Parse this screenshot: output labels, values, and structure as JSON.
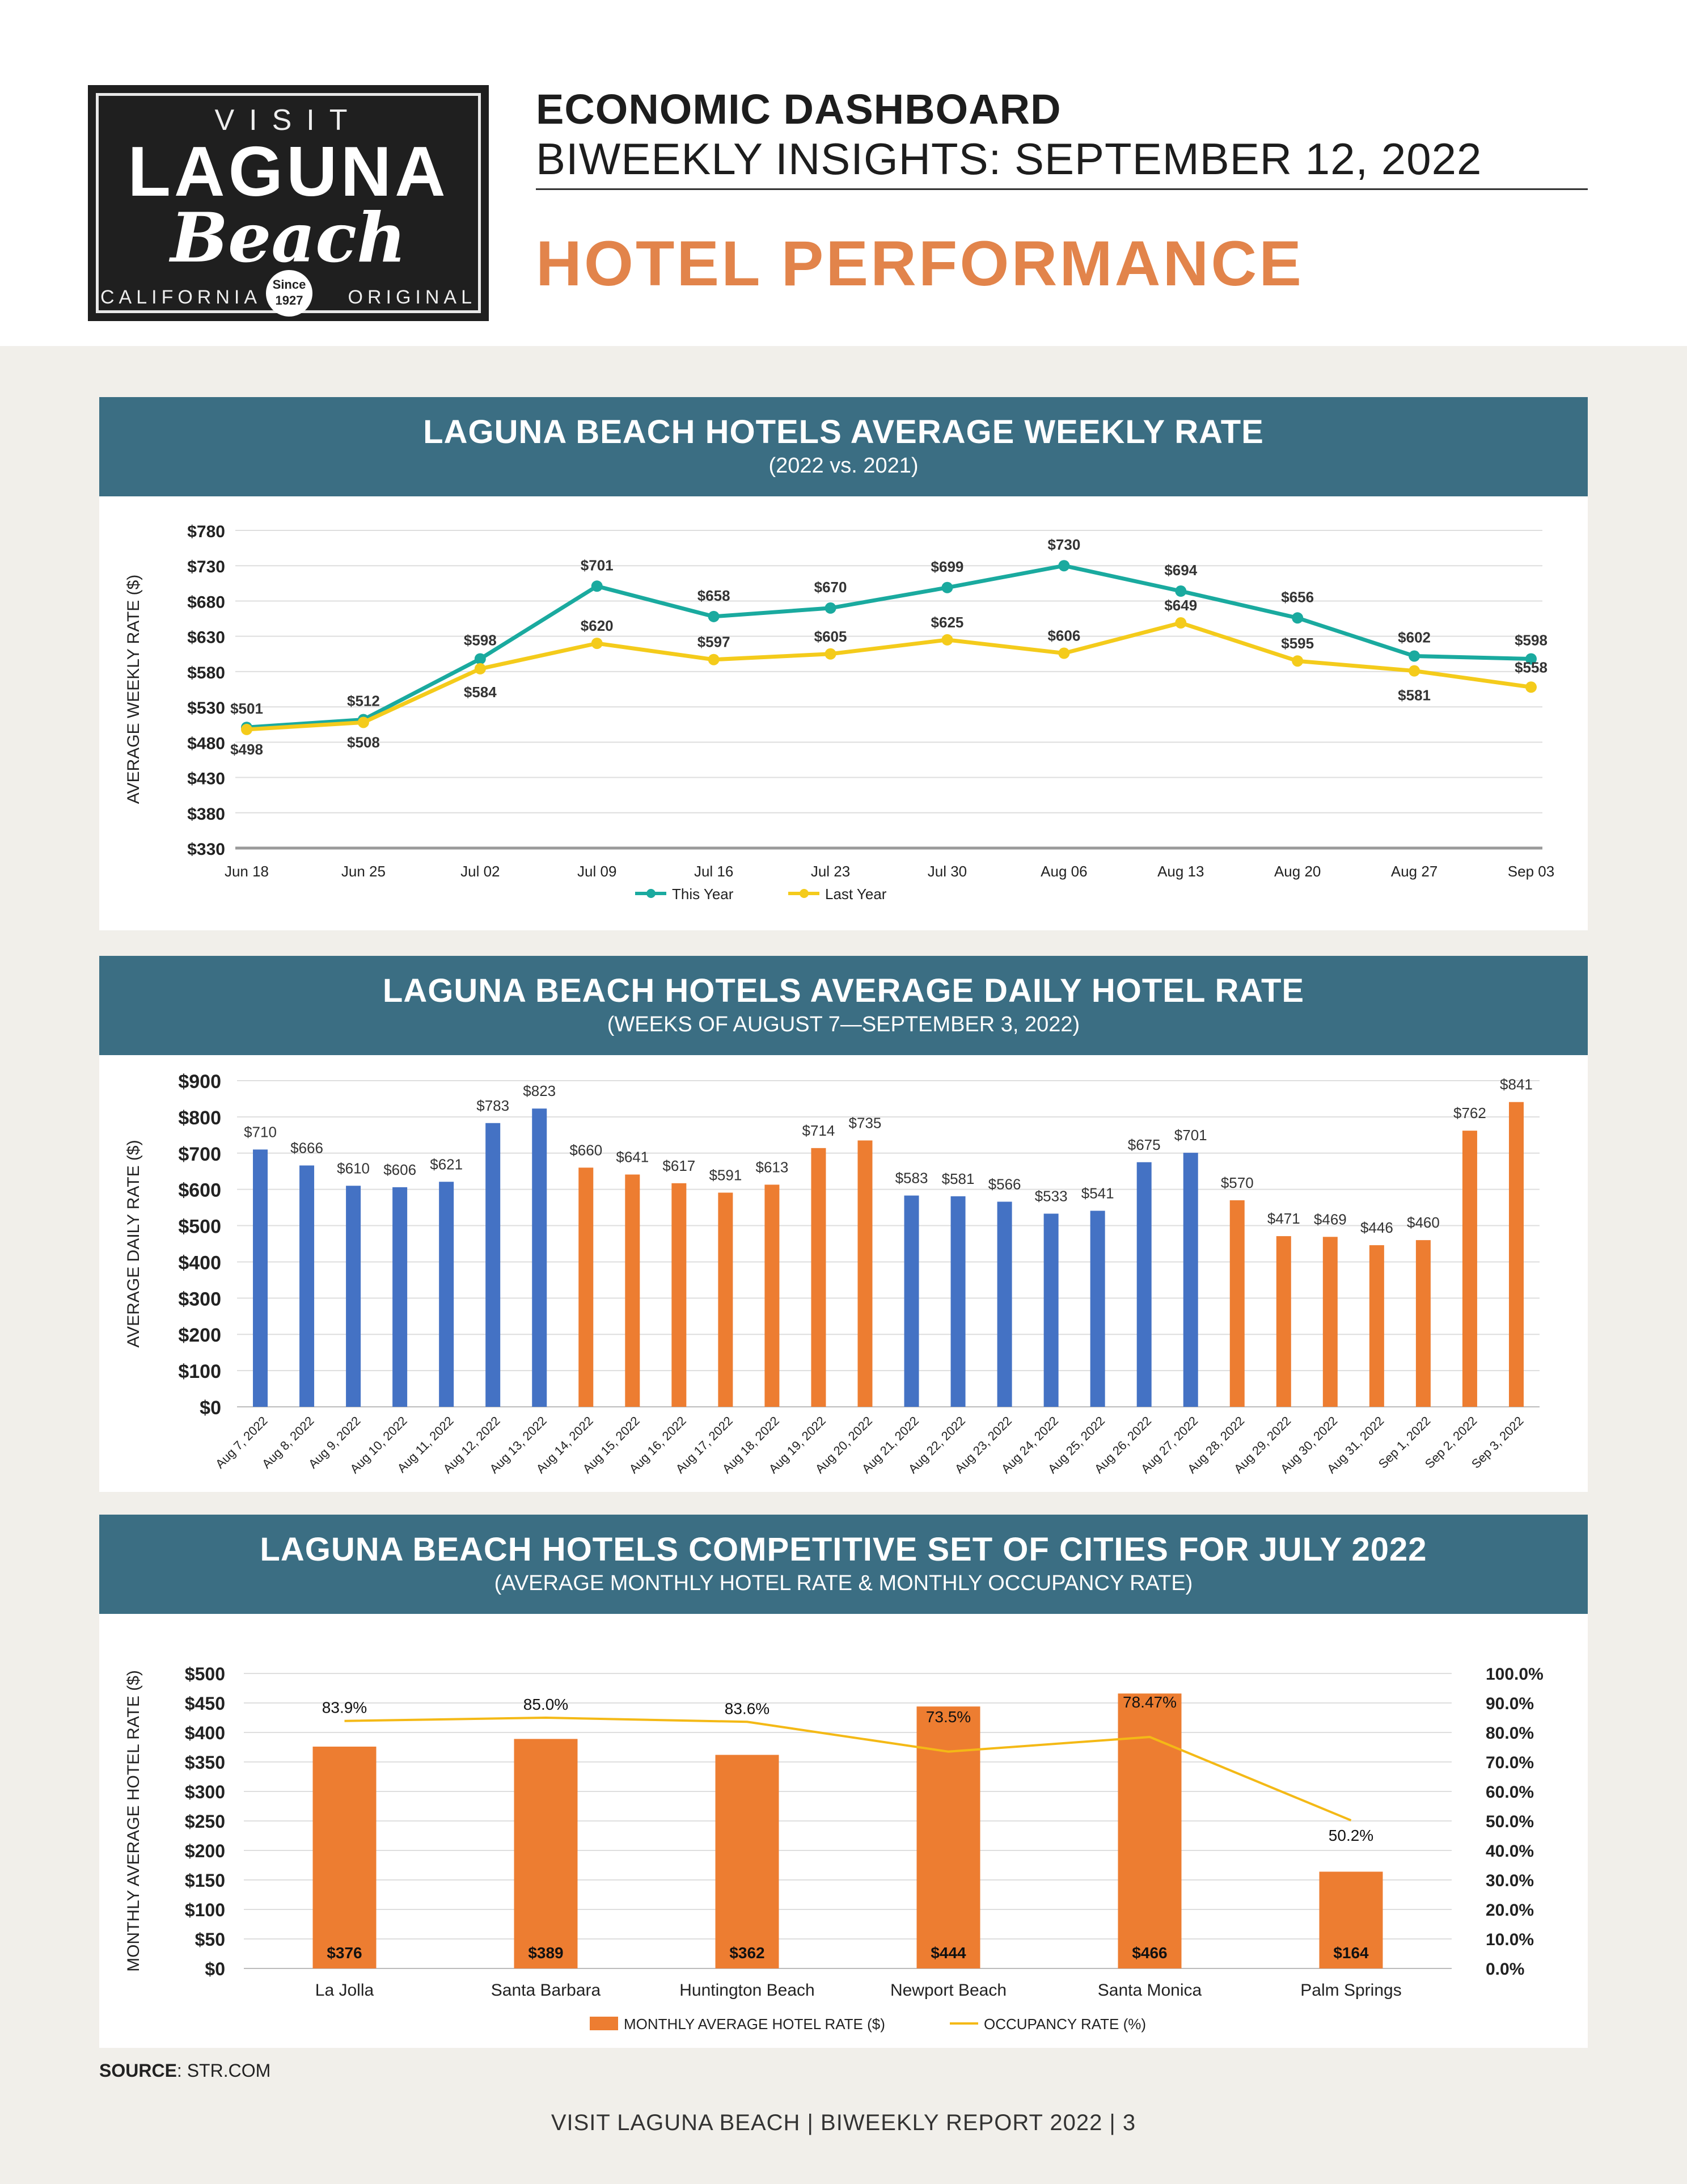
{
  "header": {
    "logo": {
      "visit": "VISIT",
      "name": "LAGUNA",
      "script": "Beach",
      "left": "CALIFORNIA",
      "right": "ORIGINAL",
      "since": "Since",
      "year": "1927"
    },
    "title": "ECONOMIC DASHBOARD",
    "subtitle": "BIWEEKLY INSIGHTS: SEPTEMBER 12, 2022",
    "section": "HOTEL PERFORMANCE"
  },
  "panels": [
    {
      "title": "LAGUNA BEACH HOTELS AVERAGE WEEKLY RATE",
      "subtitle": "(2022 vs. 2021)"
    },
    {
      "title": "LAGUNA BEACH HOTELS AVERAGE DAILY HOTEL RATE",
      "subtitle": "(WEEKS OF AUGUST 7—SEPTEMBER 3, 2022)"
    },
    {
      "title": "LAGUNA BEACH HOTELS COMPETITIVE SET OF CITIES FOR JULY 2022",
      "subtitle": "(AVERAGE MONTHLY HOTEL RATE & MONTHLY OCCUPANCY RATE)"
    }
  ],
  "chart_data": [
    {
      "type": "line",
      "ylabel": "AVERAGE WEEKLY RATE ($)",
      "ylim": [
        330,
        780
      ],
      "yticks": [
        330,
        380,
        430,
        480,
        530,
        580,
        630,
        680,
        730,
        780
      ],
      "ytick_labels": [
        "$330",
        "$380",
        "$430",
        "$480",
        "$530",
        "$580",
        "$630",
        "$680",
        "$730",
        "$780"
      ],
      "categories": [
        "Jun 18",
        "Jun 25",
        "Jul 02",
        "Jul 09",
        "Jul 16",
        "Jul 23",
        "Jul 30",
        "Aug 06",
        "Aug 13",
        "Aug 20",
        "Aug 27",
        "Sep 03"
      ],
      "series": [
        {
          "name": "This Year",
          "color": "#1aaa9f",
          "values": [
            501,
            512,
            598,
            701,
            658,
            670,
            699,
            730,
            694,
            656,
            602,
            598
          ],
          "labels": [
            "$501",
            "$512",
            "$598",
            "$701",
            "$658",
            "$670",
            "$699",
            "$730",
            "$694",
            "$656",
            "$602",
            "$598"
          ]
        },
        {
          "name": "Last Year",
          "color": "#f4cb1b",
          "values": [
            498,
            508,
            584,
            620,
            597,
            605,
            625,
            606,
            649,
            595,
            581,
            558
          ],
          "labels": [
            "$498",
            "$508",
            "$584",
            "$620",
            "$597",
            "$605",
            "$625",
            "$606",
            "$649",
            "$595",
            "$581",
            "$558"
          ]
        }
      ],
      "legend": "bottom",
      "grid": true
    },
    {
      "type": "bar",
      "ylabel": "AVERAGE DAILY RATE ($)",
      "ylim": [
        0,
        900
      ],
      "yticks": [
        0,
        100,
        200,
        300,
        400,
        500,
        600,
        700,
        800,
        900
      ],
      "ytick_labels": [
        "$0",
        "$100",
        "$200",
        "$300",
        "$400",
        "$500",
        "$600",
        "$700",
        "$800",
        "$900"
      ],
      "categories": [
        "Aug 7, 2022",
        "Aug 8, 2022",
        "Aug 9, 2022",
        "Aug 10, 2022",
        "Aug 11, 2022",
        "Aug 12, 2022",
        "Aug 13, 2022",
        "Aug 14, 2022",
        "Aug 15, 2022",
        "Aug 16, 2022",
        "Aug 17, 2022",
        "Aug 18, 2022",
        "Aug 19, 2022",
        "Aug 20, 2022",
        "Aug 21, 2022",
        "Aug 22, 2022",
        "Aug 23, 2022",
        "Aug 24, 2022",
        "Aug 25, 2022",
        "Aug 26, 2022",
        "Aug 27, 2022",
        "Aug 28, 2022",
        "Aug 29, 2022",
        "Aug 30, 2022",
        "Aug 31, 2022",
        "Sep 1, 2022",
        "Sep 2, 2022",
        "Sep 3, 2022"
      ],
      "values": [
        710,
        666,
        610,
        606,
        621,
        783,
        823,
        660,
        641,
        617,
        591,
        613,
        714,
        735,
        583,
        581,
        566,
        533,
        541,
        675,
        701,
        570,
        471,
        469,
        446,
        460,
        762,
        841
      ],
      "labels": [
        "$710",
        "$666",
        "$610",
        "$606",
        "$621",
        "$783",
        "$823",
        "$660",
        "$641",
        "$617",
        "$591",
        "$613",
        "$714",
        "$735",
        "$583",
        "$581",
        "$566",
        "$533",
        "$541",
        "$675",
        "$701",
        "$570",
        "$471",
        "$469",
        "$446",
        "$460",
        "$762",
        "$841"
      ],
      "bar_colors": [
        "#4472c4",
        "#4472c4",
        "#4472c4",
        "#4472c4",
        "#4472c4",
        "#4472c4",
        "#4472c4",
        "#ed7d31",
        "#ed7d31",
        "#ed7d31",
        "#ed7d31",
        "#ed7d31",
        "#ed7d31",
        "#ed7d31",
        "#4472c4",
        "#4472c4",
        "#4472c4",
        "#4472c4",
        "#4472c4",
        "#4472c4",
        "#4472c4",
        "#ed7d31",
        "#ed7d31",
        "#ed7d31",
        "#ed7d31",
        "#ed7d31",
        "#ed7d31",
        "#ed7d31"
      ],
      "grid": true
    },
    {
      "type": "bar",
      "ylabel": "MONTHLY AVERAGE HOTEL RATE ($)",
      "ylim": [
        0,
        500
      ],
      "yticks": [
        0,
        50,
        100,
        150,
        200,
        250,
        300,
        350,
        400,
        450,
        500
      ],
      "ytick_labels": [
        "$0",
        "$50",
        "$100",
        "$150",
        "$200",
        "$250",
        "$300",
        "$350",
        "$400",
        "$450",
        "$500"
      ],
      "y2lim": [
        0,
        100
      ],
      "y2ticks": [
        0,
        10,
        20,
        30,
        40,
        50,
        60,
        70,
        80,
        90,
        100
      ],
      "y2tick_labels": [
        "0.0%",
        "10.0%",
        "20.0%",
        "30.0%",
        "40.0%",
        "50.0%",
        "60.0%",
        "70.0%",
        "80.0%",
        "90.0%",
        "100.0%"
      ],
      "categories": [
        "La Jolla",
        "Santa Barbara",
        "Huntington Beach",
        "Newport Beach",
        "Santa Monica",
        "Palm Springs"
      ],
      "series": [
        {
          "name": "MONTHLY AVERAGE HOTEL RATE ($)",
          "kind": "bar",
          "color": "#ed7d31",
          "values": [
            376,
            389,
            362,
            444,
            466,
            164
          ],
          "labels": [
            "$376",
            "$389",
            "$362",
            "$444",
            "$466",
            "$164"
          ]
        },
        {
          "name": "OCCUPANCY RATE (%)",
          "kind": "line",
          "color": "#f4b916",
          "values": [
            83.9,
            85.0,
            83.6,
            73.5,
            78.47,
            50.2
          ],
          "labels": [
            "83.9%",
            "85.0%",
            "83.6%",
            "73.5%",
            "78.47%",
            "50.2%"
          ]
        }
      ],
      "legend": "bottom",
      "grid": true
    }
  ],
  "source": {
    "label": "SOURCE",
    "text": ": STR.COM"
  },
  "footer": "VISIT LAGUNA BEACH  |  BIWEEKLY REPORT 2022  |  3"
}
